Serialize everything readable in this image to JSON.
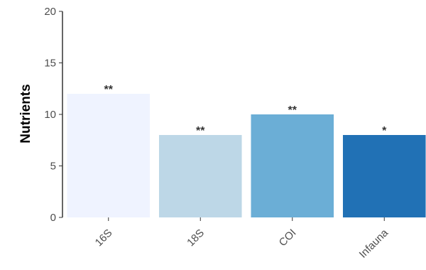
{
  "chart_data": {
    "type": "bar",
    "categories": [
      "16S",
      "18S",
      "COI",
      "Infauna"
    ],
    "values": [
      12,
      8,
      10,
      8
    ],
    "annotations": [
      "**",
      "**",
      "**",
      "*"
    ],
    "colors": [
      "#eff3ff",
      "#bdd7e7",
      "#6baed6",
      "#2171b5"
    ],
    "ylabel": "Nutrients",
    "xlabel": "",
    "ylim": [
      0,
      20
    ],
    "yticks": [
      0,
      5,
      10,
      15,
      20
    ],
    "grid": false,
    "legend": "none"
  }
}
